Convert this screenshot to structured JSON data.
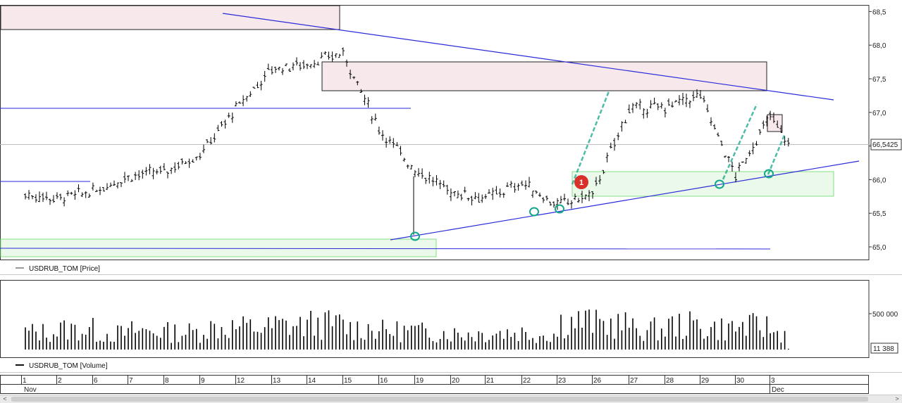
{
  "colors": {
    "trendline": "#2a2ad8",
    "supply_fill": "#f7e8ec",
    "demand_fill": "#eaf9ea",
    "demand_stroke": "#86e086",
    "marker": "#13a68a",
    "badge": "#d9302a",
    "bars": "#000000"
  },
  "price_panel": {
    "legend": "USDRUB_TOM [Price]",
    "current_price_label": "66,5425",
    "annotation_badge": "1"
  },
  "volume_panel": {
    "legend": "USDRUB_TOM [Volume]",
    "current_volume_label": "11 388"
  },
  "x_axis": {
    "day_labels": [
      "1",
      "2",
      "6",
      "7",
      "8",
      "9",
      "12",
      "13",
      "14",
      "15",
      "16",
      "19",
      "20",
      "21",
      "22",
      "23",
      "26",
      "27",
      "28",
      "29",
      "30",
      "3"
    ],
    "month_labels": [
      "Nov",
      "Dec"
    ]
  },
  "scrollbar": {
    "left_arrow": "<",
    "right_arrow": ">"
  },
  "chart_data": [
    {
      "type": "ohlc",
      "title": "USDRUB_TOM [Price]",
      "xlabel": "",
      "ylabel": "",
      "y_ticks": [
        "65,0",
        "65,5",
        "66,0",
        "66,5",
        "67,0",
        "67,5",
        "68,0",
        "68,5"
      ],
      "ylim": [
        64.85,
        68.6
      ],
      "grid": false,
      "legend_position": "bottom-left",
      "x_day_labels": [
        "1",
        "2",
        "6",
        "7",
        "8",
        "9",
        "12",
        "13",
        "14",
        "15",
        "16",
        "19",
        "20",
        "21",
        "22",
        "23",
        "26",
        "27",
        "28",
        "29",
        "30",
        "3"
      ],
      "daily_closes": [
        65.72,
        65.82,
        66.05,
        66.12,
        66.38,
        67.05,
        67.65,
        67.72,
        67.88,
        66.75,
        66.15,
        65.82,
        65.72,
        65.95,
        65.62,
        65.78,
        67.05,
        67.08,
        67.25,
        66.05,
        66.95,
        66.54
      ],
      "last_price": 66.5425
    },
    {
      "type": "bar",
      "title": "USDRUB_TOM [Volume]",
      "xlabel": "",
      "ylabel": "",
      "y_ticks": [
        "500 000"
      ],
      "ylim": [
        0,
        920000
      ],
      "grid": false,
      "legend_position": "bottom-left",
      "x_day_labels": [
        "1",
        "2",
        "6",
        "7",
        "8",
        "9",
        "12",
        "13",
        "14",
        "15",
        "16",
        "19",
        "20",
        "21",
        "22",
        "23",
        "26",
        "27",
        "28",
        "29",
        "30",
        "3"
      ],
      "daily_volume_avg": [
        260000,
        300000,
        240000,
        280000,
        260000,
        330000,
        330000,
        360000,
        380000,
        320000,
        280000,
        260000,
        240000,
        260000,
        230000,
        420000,
        380000,
        300000,
        360000,
        320000,
        340000,
        250000
      ],
      "last_volume": 11388
    }
  ]
}
